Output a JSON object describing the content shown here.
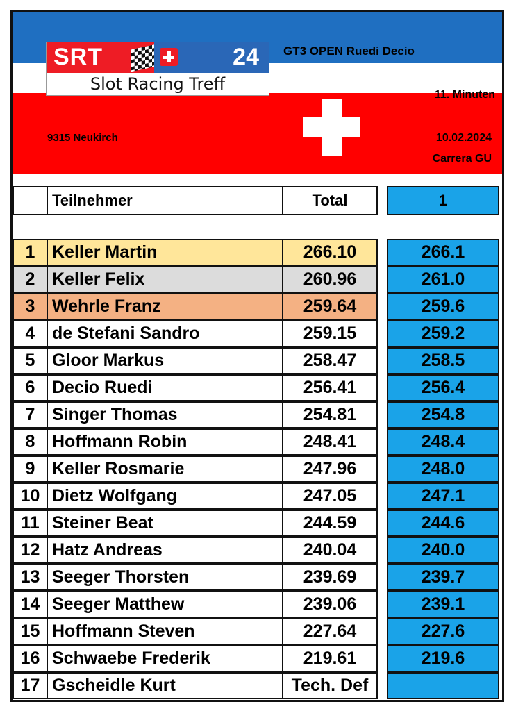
{
  "header": {
    "logo_text": "SRT",
    "logo_number": "24",
    "logo_subtitle": "Slot Racing Treff",
    "event": "GT3 OPEN Ruedi Decio",
    "duration": "11. Minuten",
    "location": "9315 Neukirch",
    "date": "10.02.2024",
    "track": "Carrera GU"
  },
  "colors": {
    "header_blue": "#1f6fc1",
    "header_red": "#ff0000",
    "result_cell": "#1aa3e8",
    "gold": "#ffe69a",
    "silver": "#dcdcdc",
    "bronze": "#f4b183"
  },
  "table": {
    "columns": {
      "name": "Teilnehmer",
      "total": "Total",
      "round": "1"
    },
    "rows": [
      {
        "rank": "1",
        "name": "Keller Martin",
        "total": "266.10",
        "r1": "266.1"
      },
      {
        "rank": "2",
        "name": "Keller Felix",
        "total": "260.96",
        "r1": "261.0"
      },
      {
        "rank": "3",
        "name": "Wehrle Franz",
        "total": "259.64",
        "r1": "259.6"
      },
      {
        "rank": "4",
        "name": "de Stefani Sandro",
        "total": "259.15",
        "r1": "259.2"
      },
      {
        "rank": "5",
        "name": "Gloor Markus",
        "total": "258.47",
        "r1": "258.5"
      },
      {
        "rank": "6",
        "name": "Decio Ruedi",
        "total": "256.41",
        "r1": "256.4"
      },
      {
        "rank": "7",
        "name": "Singer Thomas",
        "total": "254.81",
        "r1": "254.8"
      },
      {
        "rank": "8",
        "name": "Hoffmann Robin",
        "total": "248.41",
        "r1": "248.4"
      },
      {
        "rank": "9",
        "name": "Keller Rosmarie",
        "total": "247.96",
        "r1": "248.0"
      },
      {
        "rank": "10",
        "name": "Dietz Wolfgang",
        "total": "247.05",
        "r1": "247.1"
      },
      {
        "rank": "11",
        "name": "Steiner Beat",
        "total": "244.59",
        "r1": "244.6"
      },
      {
        "rank": "12",
        "name": "Hatz Andreas",
        "total": "240.04",
        "r1": "240.0"
      },
      {
        "rank": "13",
        "name": "Seeger Thorsten",
        "total": "239.69",
        "r1": "239.7"
      },
      {
        "rank": "14",
        "name": "Seeger Matthew",
        "total": "239.06",
        "r1": "239.1"
      },
      {
        "rank": "15",
        "name": "Hoffmann Steven",
        "total": "227.64",
        "r1": "227.6"
      },
      {
        "rank": "16",
        "name": "Schwaebe Frederik",
        "total": "219.61",
        "r1": "219.6"
      },
      {
        "rank": "17",
        "name": "Gscheidle Kurt",
        "total": "Tech. Def",
        "r1": ""
      }
    ]
  }
}
